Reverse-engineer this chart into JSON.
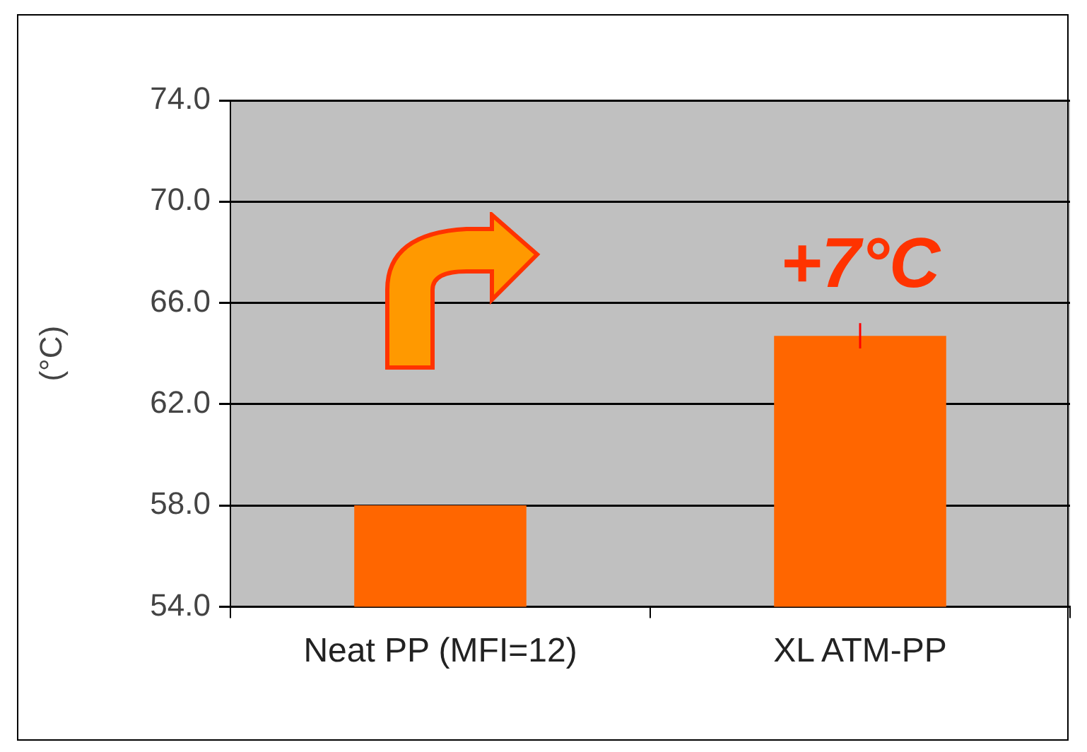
{
  "chart_data": {
    "type": "bar",
    "ylabel": "(°C)",
    "categories": [
      "Neat PP (MFI=12)",
      "XL ATM-PP"
    ],
    "values": [
      58.0,
      64.7
    ],
    "errors": [
      null,
      0.5
    ],
    "color": "#ff6600",
    "ylim": [
      54,
      74
    ],
    "yticks": [
      {
        "value": 54,
        "label": "54.0"
      },
      {
        "value": 58,
        "label": "58.0"
      },
      {
        "value": 62,
        "label": "62.0"
      },
      {
        "value": 66,
        "label": "66.0"
      },
      {
        "value": 70,
        "label": "70.0"
      },
      {
        "value": 74,
        "label": "74.0"
      }
    ],
    "grid": "y",
    "annotations": [
      "+7°C"
    ]
  }
}
